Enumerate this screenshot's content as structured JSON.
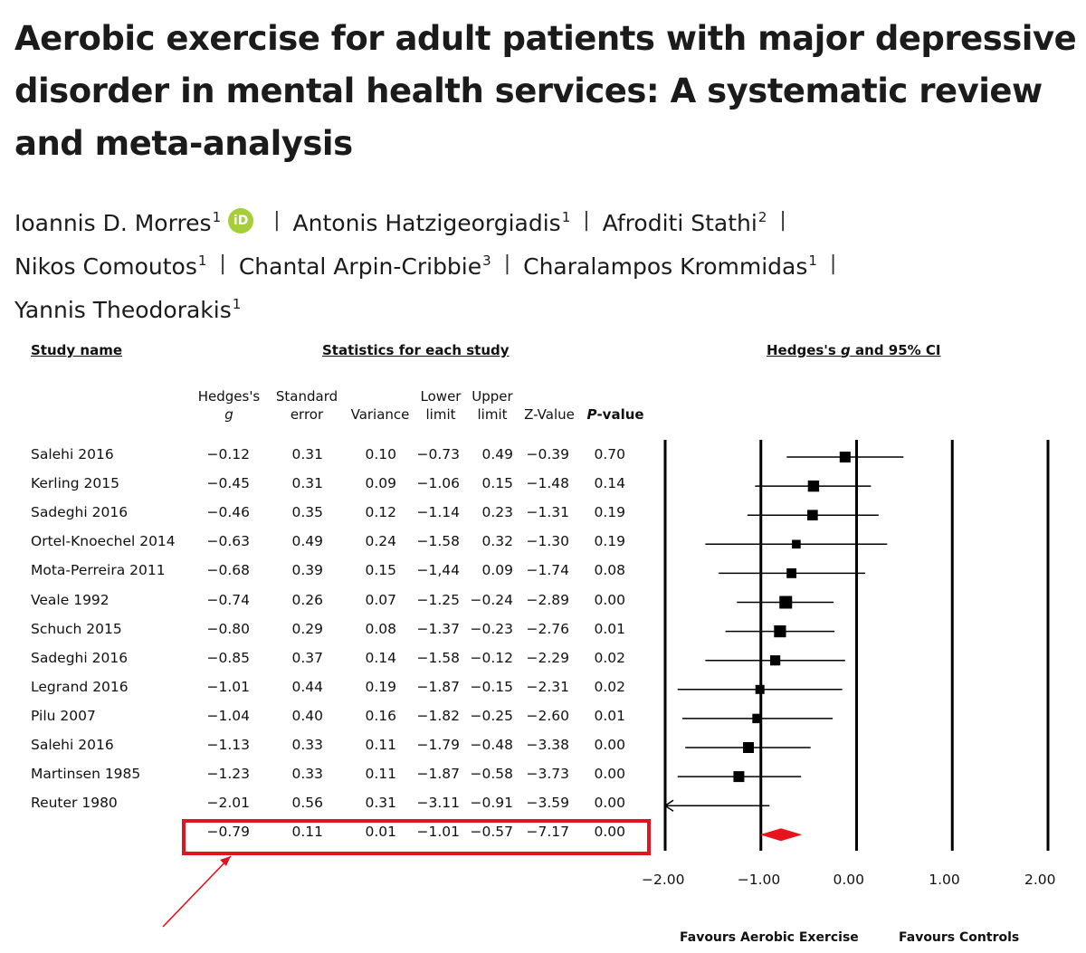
{
  "title": "Aerobic exercise for adult patients with major depressive disorder in mental health services: A systematic review and meta-analysis",
  "authors": {
    "line1": [
      {
        "name": "Ioannis D. Morres",
        "aff": "1",
        "orcid": "iD"
      },
      {
        "name": "Antonis Hatzigeorgiadis",
        "aff": "1"
      },
      {
        "name": "Afroditi Stathi",
        "aff": "2"
      }
    ],
    "line2": [
      {
        "name": "Nikos Comoutos",
        "aff": "1"
      },
      {
        "name": "Chantal Arpin-Cribbie",
        "aff": "3"
      },
      {
        "name": "Charalampos Krommidas",
        "aff": "1"
      }
    ],
    "line3": [
      {
        "name": "Yannis Theodorakis",
        "aff": "1"
      }
    ],
    "separator": "|"
  },
  "figure": {
    "study_header": "Study name",
    "stats_header": "Statistics for each study",
    "plot_header_pre": "Hedges's ",
    "plot_header_g": "g",
    "plot_header_post": " and 95% CI",
    "columns": {
      "hedges": {
        "line1": "Hedges's",
        "line2": "g"
      },
      "se": {
        "line1": "Standard",
        "line2": "error"
      },
      "variance": "Variance",
      "lower": {
        "line1": "Lower",
        "line2": "limit"
      },
      "upper": {
        "line1": "Upper",
        "line2": "limit"
      },
      "z": "Z-Value",
      "p": {
        "italic": "P",
        "rest": "-value"
      }
    },
    "favours_left": "Favours Aerobic Exercise",
    "favours_right": "Favours Controls",
    "highlight_color": "#e0161f"
  },
  "chart_data": {
    "type": "forest",
    "xlim": [
      -2.0,
      2.0
    ],
    "x_ticks": [
      "−2.00",
      "−1.00",
      "0.00",
      "1.00",
      "2.00"
    ],
    "tick_values": [
      -2,
      -1,
      0,
      1,
      2
    ],
    "studies": [
      {
        "name": "Salehi 2016",
        "g": -0.12,
        "g_text": "−0.12",
        "se": "0.31",
        "var": "0.10",
        "lower": -0.73,
        "lower_text": "−0.73",
        "upper": 0.49,
        "upper_text": "0.49",
        "z": "−0.39",
        "p": "0.70",
        "weight": 0.75
      },
      {
        "name": "Kerling 2015",
        "g": -0.45,
        "g_text": "−0.45",
        "se": "0.31",
        "var": "0.09",
        "lower": -1.06,
        "lower_text": "−1.06",
        "upper": 0.15,
        "upper_text": "0.15",
        "z": "−1.48",
        "p": "0.14",
        "weight": 0.8
      },
      {
        "name": "Sadeghi 2016",
        "g": -0.46,
        "g_text": "−0.46",
        "se": "0.35",
        "var": "0.12",
        "lower": -1.14,
        "lower_text": "−1.14",
        "upper": 0.23,
        "upper_text": "0.23",
        "z": "−1.31",
        "p": "0.19",
        "weight": 0.7
      },
      {
        "name": "Ortel-Knoechel 2014",
        "g": -0.63,
        "g_text": "−0.63",
        "se": "0.49",
        "var": "0.24",
        "lower": -1.58,
        "lower_text": "−1.58",
        "upper": 0.32,
        "upper_text": "0.32",
        "z": "−1.30",
        "p": "0.19",
        "weight": 0.45
      },
      {
        "name": "Mota-Perreira 2011",
        "g": -0.68,
        "g_text": "−0.68",
        "se": "0.39",
        "var": "0.15",
        "lower": -1.44,
        "lower_text": "−1,44",
        "upper": 0.09,
        "upper_text": "0.09",
        "z": "−1.74",
        "p": "0.08",
        "weight": 0.6
      },
      {
        "name": "Veale 1992",
        "g": -0.74,
        "g_text": "−0.74",
        "se": "0.26",
        "var": "0.07",
        "lower": -1.25,
        "lower_text": "−1.25",
        "upper": -0.24,
        "upper_text": "−0.24",
        "z": "−2.89",
        "p": "0.00",
        "weight": 1.0
      },
      {
        "name": "Schuch 2015",
        "g": -0.8,
        "g_text": "−0.80",
        "se": "0.29",
        "var": "0.08",
        "lower": -1.37,
        "lower_text": "−1.37",
        "upper": -0.23,
        "upper_text": "−0.23",
        "z": "−2.76",
        "p": "0.01",
        "weight": 0.9
      },
      {
        "name": "Sadeghi 2016",
        "g": -0.85,
        "g_text": "−0.85",
        "se": "0.37",
        "var": "0.14",
        "lower": -1.58,
        "lower_text": "−1.58",
        "upper": -0.12,
        "upper_text": "−0.12",
        "z": "−2.29",
        "p": "0.02",
        "weight": 0.65
      },
      {
        "name": "Legrand 2016",
        "g": -1.01,
        "g_text": "−1.01",
        "se": "0.44",
        "var": "0.19",
        "lower": -1.87,
        "lower_text": "−1.87",
        "upper": -0.15,
        "upper_text": "−0.15",
        "z": "−2.31",
        "p": "0.02",
        "weight": 0.5
      },
      {
        "name": "Pilu 2007",
        "g": -1.04,
        "g_text": "−1.04",
        "se": "0.40",
        "var": "0.16",
        "lower": -1.82,
        "lower_text": "−1.82",
        "upper": -0.25,
        "upper_text": "−0.25",
        "z": "−2.60",
        "p": "0.01",
        "weight": 0.55
      },
      {
        "name": "Salehi 2016",
        "g": -1.13,
        "g_text": "−1.13",
        "se": "0.33",
        "var": "0.11",
        "lower": -1.79,
        "lower_text": "−1.79",
        "upper": -0.48,
        "upper_text": "−0.48",
        "z": "−3.38",
        "p": "0.00",
        "weight": 0.75
      },
      {
        "name": "Martinsen 1985",
        "g": -1.23,
        "g_text": "−1.23",
        "se": "0.33",
        "var": "0.11",
        "lower": -1.87,
        "lower_text": "−1.87",
        "upper": -0.58,
        "upper_text": "−0.58",
        "z": "−3.73",
        "p": "0.00",
        "weight": 0.75
      },
      {
        "name": "Reuter 1980",
        "g": -2.01,
        "g_text": "−2.01",
        "se": "0.56",
        "var": "0.31",
        "lower": -3.11,
        "lower_text": "−3.11",
        "upper": -0.91,
        "upper_text": "−0.91",
        "z": "−3.59",
        "p": "0.00",
        "weight": 0.4
      }
    ],
    "summary": {
      "g": -0.79,
      "g_text": "−0.79",
      "se": "0.11",
      "var": "0.01",
      "lower": -1.01,
      "lower_text": "−1.01",
      "upper": -0.57,
      "upper_text": "−0.57",
      "z": "−7.17",
      "p": "0.00",
      "color": "#e8141c"
    }
  }
}
